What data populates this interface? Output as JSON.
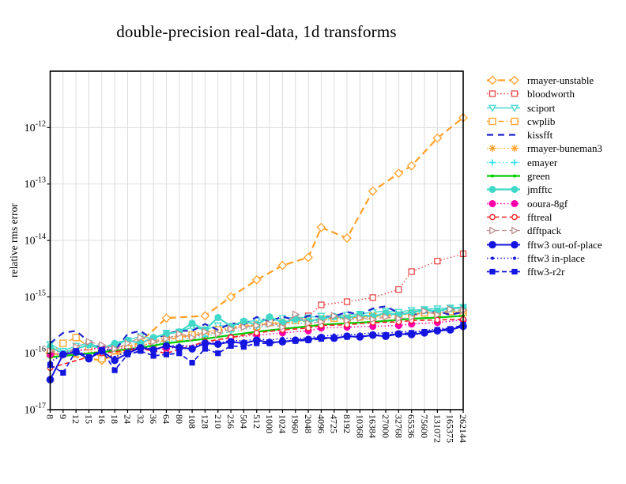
{
  "chart_data": {
    "type": "line",
    "title": "double-precision real-data, 1d transforms",
    "ylabel": "relative rms error",
    "xlabel": "",
    "y_scale": "log",
    "y_top_exponent": -11,
    "y_bottom_exponent": -17,
    "y_tick_exponents": [
      -12,
      -13,
      -14,
      -15,
      -16,
      -17
    ],
    "grid": true,
    "legend_position": "right",
    "frame_color": "#000000",
    "grid_color": "#dcdcdc",
    "categories": [
      "8",
      "9",
      "12",
      "15",
      "16",
      "18",
      "24",
      "32",
      "36",
      "64",
      "80",
      "108",
      "128",
      "210",
      "256",
      "504",
      "512",
      "1000",
      "1024",
      "1960",
      "2048",
      "4096",
      "4725",
      "8192",
      "10368",
      "16384",
      "27000",
      "32768",
      "65536",
      "75600",
      "131072",
      "165375",
      "262144"
    ],
    "series": [
      {
        "name": "rmayer-unstable",
        "color": "#FFA028",
        "dash": "9 5",
        "line_width": 2.2,
        "marker": "diamond",
        "marker_filled": false,
        "marker_size": 5,
        "values": [
          1e-16,
          null,
          null,
          null,
          7.5e-17,
          null,
          null,
          1.6e-16,
          null,
          4.2e-16,
          null,
          null,
          4.6e-16,
          null,
          1e-15,
          null,
          2e-15,
          null,
          3.6e-15,
          null,
          5e-15,
          1.7e-14,
          null,
          1.1e-14,
          null,
          7.5e-14,
          null,
          1.55e-13,
          2.1e-13,
          null,
          6.5e-13,
          null,
          1.5e-12
        ]
      },
      {
        "name": "bloodworth",
        "color": "#E84A4A",
        "dash": "1.5 2.8",
        "line_width": 1.4,
        "marker": "square",
        "marker_filled": false,
        "marker_size": 3.5,
        "values": [
          1.05e-16,
          null,
          null,
          null,
          1.25e-16,
          null,
          null,
          1.35e-16,
          null,
          1.8e-16,
          null,
          null,
          2.1e-16,
          null,
          2.8e-16,
          null,
          3.1e-16,
          null,
          3.3e-16,
          null,
          4.6e-16,
          7.2e-16,
          null,
          8.2e-16,
          null,
          9.7e-16,
          null,
          1.35e-15,
          2.8e-15,
          null,
          4.3e-15,
          null,
          5.8e-15
        ]
      },
      {
        "name": "sciport",
        "color": "#40D8D0",
        "dash": "",
        "line_width": 1.4,
        "marker": "triangle-down",
        "marker_filled": false,
        "marker_size": 4,
        "values": [
          1.45e-16,
          1.1e-16,
          1.35e-16,
          1.5e-16,
          1.25e-16,
          1.35e-16,
          1.7e-16,
          2e-16,
          1.8e-16,
          2.3e-16,
          2.4e-16,
          2.9e-16,
          2.6e-16,
          3.1e-16,
          3e-16,
          3.6e-16,
          3.8e-16,
          4e-16,
          4.2e-16,
          4.3e-16,
          4.3e-16,
          4.6e-16,
          4.4e-16,
          4.8e-16,
          5e-16,
          5.3e-16,
          5.6e-16,
          5.4e-16,
          5.8e-16,
          6e-16,
          6.2e-16,
          6.4e-16,
          6.6e-16
        ]
      },
      {
        "name": "cwplib",
        "color": "#FFA028",
        "dash": "7 3 1.5 3",
        "line_width": 1.4,
        "marker": "square",
        "marker_filled": false,
        "marker_size": 4,
        "values": [
          1e-16,
          1.5e-16,
          1.9e-16,
          1.3e-16,
          8e-17,
          8.5e-17,
          1.2e-16,
          1.4e-16,
          1.5e-16,
          1.7e-16,
          1.9e-16,
          2.1e-16,
          2.3e-16,
          2.6e-16,
          2.8e-16,
          3.2e-16,
          3e-16,
          3.5e-16,
          3.3e-16,
          3.8e-16,
          3.6e-16,
          4e-16,
          4.2e-16,
          4.1e-16,
          4.4e-16,
          4.5e-16,
          4.8e-16,
          4.6e-16,
          5e-16,
          5.2e-16,
          5.1e-16,
          5.5e-16,
          5.3e-16
        ]
      },
      {
        "name": "kissfft",
        "color": "#2222CC",
        "dash": "8 6",
        "line_width": 2.2,
        "marker": "none",
        "marker_filled": false,
        "marker_size": 0,
        "values": [
          1.5e-16,
          2.3e-16,
          2.5e-16,
          1.6e-16,
          1.2e-16,
          1.1e-16,
          2.2e-16,
          2.5e-16,
          1.7e-16,
          2.2e-16,
          2.5e-16,
          2.5e-16,
          3.3e-16,
          2.6e-16,
          3.4e-16,
          3.2e-16,
          4.4e-16,
          3.6e-16,
          4.5e-16,
          3.8e-16,
          4.6e-16,
          4.4e-16,
          4.5e-16,
          5.4e-16,
          4.8e-16,
          6.2e-16,
          6.8e-16,
          5.2e-16,
          4.8e-16,
          5.2e-16,
          5.6e-16,
          4.8e-16,
          5.4e-16
        ]
      },
      {
        "name": "rmayer-buneman3",
        "color": "#FFA028",
        "dash": "1.5 2.8",
        "line_width": 1.3,
        "marker": "asterisk",
        "marker_filled": false,
        "marker_size": 4.5,
        "values": [
          9e-17,
          null,
          null,
          null,
          1.1e-16,
          null,
          null,
          1.5e-16,
          null,
          1.9e-16,
          null,
          null,
          2.4e-16,
          null,
          2.8e-16,
          null,
          3.3e-16,
          null,
          3.6e-16,
          null,
          3.8e-16,
          3.9e-16,
          null,
          4.2e-16,
          null,
          4.4e-16,
          null,
          4.7e-16,
          5e-16,
          null,
          5.2e-16,
          null,
          5.5e-16
        ]
      },
      {
        "name": "emayer",
        "color": "#30E0E8",
        "dash": "1.5 3.5",
        "line_width": 1.3,
        "marker": "plus",
        "marker_filled": false,
        "marker_size": 4,
        "values": [
          8.5e-17,
          null,
          null,
          null,
          1e-16,
          null,
          null,
          1.3e-16,
          null,
          1.6e-16,
          null,
          null,
          2e-16,
          null,
          2.4e-16,
          null,
          2.9e-16,
          null,
          3.2e-16,
          null,
          3.5e-16,
          3.8e-16,
          null,
          4.1e-16,
          null,
          4.5e-16,
          null,
          4.8e-16,
          5.2e-16,
          null,
          5.5e-16,
          null,
          5.8e-16
        ]
      },
      {
        "name": "green",
        "color": "#00CC00",
        "dash": "",
        "line_width": 2.2,
        "marker": "circle",
        "marker_filled": true,
        "marker_size": 2,
        "values": [
          8.5e-17,
          null,
          null,
          null,
          1.05e-16,
          null,
          null,
          1.25e-16,
          null,
          1.5e-16,
          null,
          null,
          1.8e-16,
          null,
          2.1e-16,
          null,
          2.4e-16,
          null,
          2.7e-16,
          null,
          3e-16,
          3.2e-16,
          null,
          3.4e-16,
          null,
          3.6e-16,
          null,
          3.9e-16,
          4.1e-16,
          null,
          4.3e-16,
          null,
          4.6e-16
        ]
      },
      {
        "name": "jmfftc",
        "color": "#40D8C8",
        "dash": "",
        "line_width": 2.2,
        "marker": "circle",
        "marker_filled": true,
        "marker_size": 4.5,
        "values": [
          1.3e-16,
          1e-16,
          1.2e-16,
          1.4e-16,
          1.2e-16,
          1.5e-16,
          1.7e-16,
          1.5e-16,
          1.9e-16,
          2.2e-16,
          2.4e-16,
          3.4e-16,
          2.6e-16,
          4.3e-16,
          3e-16,
          3.7e-16,
          3.2e-16,
          4.4e-16,
          3.5e-16,
          4e-16,
          3.7e-16,
          4.1e-16,
          4.5e-16,
          4.2e-16,
          4.8e-16,
          4.5e-16,
          5.2e-16,
          4.8e-16,
          5.3e-16,
          5.8e-16,
          5.6e-16,
          6.2e-16,
          6.4e-16
        ]
      },
      {
        "name": "ooura-8gf",
        "color": "#FF00A8",
        "dash": "1.5 2.8",
        "line_width": 1.4,
        "marker": "circle",
        "marker_filled": true,
        "marker_size": 4.5,
        "values": [
          9.5e-17,
          null,
          null,
          null,
          1.25e-16,
          null,
          null,
          1.2e-16,
          null,
          1.2e-16,
          null,
          null,
          1.5e-16,
          null,
          1.9e-16,
          null,
          2.1e-16,
          null,
          2.3e-16,
          null,
          2.5e-16,
          2.8e-16,
          null,
          2.9e-16,
          null,
          3e-16,
          null,
          3.1e-16,
          3.3e-16,
          null,
          3.5e-16,
          null,
          3.9e-16
        ]
      },
      {
        "name": "fftreal",
        "color": "#FF2020",
        "dash": "6 3.5",
        "line_width": 1.6,
        "marker": "circle",
        "marker_filled": false,
        "marker_size": 3.2,
        "values": [
          5.5e-17,
          null,
          null,
          null,
          1e-16,
          null,
          null,
          1.2e-16,
          null,
          1e-16,
          null,
          null,
          1.6e-16,
          null,
          1.9e-16,
          null,
          2.3e-16,
          null,
          2.6e-16,
          null,
          2.8e-16,
          3.1e-16,
          null,
          3.2e-16,
          null,
          3.5e-16,
          null,
          3.6e-16,
          3.8e-16,
          null,
          3.9e-16,
          null,
          4e-16
        ]
      },
      {
        "name": "dfftpack",
        "color": "#C09090",
        "dash": "6 3.5",
        "line_width": 1.3,
        "marker": "triangle-right",
        "marker_filled": false,
        "marker_size": 4,
        "values": [
          1.1e-16,
          9e-17,
          1.3e-16,
          1.6e-16,
          1.4e-16,
          1.2e-16,
          1.5e-16,
          1.9e-16,
          1.6e-16,
          1.8e-16,
          2.2e-16,
          1.9e-16,
          2.4e-16,
          2.2e-16,
          2.7e-16,
          2.9e-16,
          3.1e-16,
          3.3e-16,
          2.9e-16,
          4.9e-16,
          3.4e-16,
          3.6e-16,
          4.6e-16,
          3.8e-16,
          4.2e-16,
          4e-16,
          4.4e-16,
          4.1e-16,
          4.3e-16,
          5.6e-16,
          4.8e-16,
          6e-16,
          5.8e-16
        ]
      },
      {
        "name": "fftw3 out-of-place",
        "color": "#1515E0",
        "dash": "",
        "line_width": 2,
        "marker": "circle",
        "marker_filled": true,
        "marker_size": 4.8,
        "values": [
          3.4e-17,
          9.5e-17,
          1.05e-16,
          8e-17,
          1.1e-16,
          7.5e-17,
          1e-16,
          1.25e-16,
          1.15e-16,
          1.35e-16,
          1.25e-16,
          1.2e-16,
          1.5e-16,
          1.45e-16,
          1.6e-16,
          1.5e-16,
          1.7e-16,
          1.55e-16,
          1.6e-16,
          1.7e-16,
          1.75e-16,
          1.9e-16,
          1.85e-16,
          2e-16,
          1.95e-16,
          2.1e-16,
          2e-16,
          2.2e-16,
          2.15e-16,
          2.3e-16,
          2.5e-16,
          2.6e-16,
          3e-16
        ]
      },
      {
        "name": "fftw3 in-place",
        "color": "#1515E0",
        "dash": "1.5 2.8",
        "line_width": 1.6,
        "marker": "circle",
        "marker_filled": true,
        "marker_size": 2,
        "values": [
          7e-17,
          9.5e-17,
          1.1e-16,
          9e-17,
          1e-16,
          8.5e-17,
          1.1e-16,
          1.3e-16,
          1.2e-16,
          1.3e-16,
          1.4e-16,
          1.3e-16,
          1.55e-16,
          1.5e-16,
          1.7e-16,
          1.65e-16,
          1.8e-16,
          1.7e-16,
          1.85e-16,
          1.8e-16,
          1.9e-16,
          2e-16,
          2.1e-16,
          2.1e-16,
          2.2e-16,
          2.3e-16,
          2.25e-16,
          2.4e-16,
          2.4e-16,
          2.5e-16,
          2.7e-16,
          2.8e-16,
          3.1e-16
        ]
      },
      {
        "name": "fftw3-r2r",
        "color": "#1515E0",
        "dash": "6 3.5",
        "line_width": 1.7,
        "marker": "square",
        "marker_filled": true,
        "marker_size": 3.6,
        "values": [
          6.2e-17,
          4.5e-17,
          1.1e-16,
          8.5e-17,
          1.15e-16,
          5e-17,
          9.5e-17,
          1.1e-16,
          9e-17,
          9.5e-17,
          1e-16,
          6.8e-17,
          1.2e-16,
          1e-16,
          1.35e-16,
          1.3e-16,
          1.5e-16,
          1.5e-16,
          1.6e-16,
          1.65e-16,
          1.7e-16,
          1.8e-16,
          1.85e-16,
          1.95e-16,
          2e-16,
          2.1e-16,
          2.1e-16,
          2.2e-16,
          2.3e-16,
          2.4e-16,
          2.6e-16,
          2.7e-16,
          3.2e-16
        ]
      }
    ]
  }
}
